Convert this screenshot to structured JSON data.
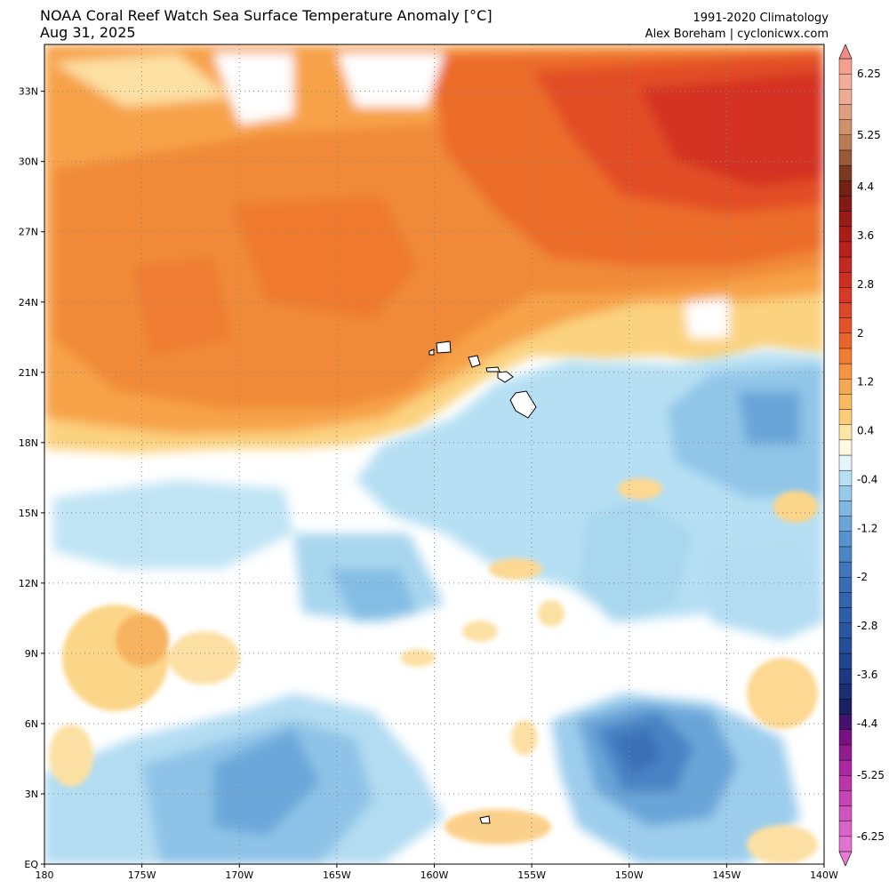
{
  "header": {
    "title": "NOAA Coral Reef Watch Sea Surface Temperature Anomaly [°C]",
    "date": "Aug 31, 2025",
    "climatology": "1991-2020 Climatology",
    "credit": "Alex Boreham | cyclonicwx.com"
  },
  "map": {
    "lat_labels": [
      "33N",
      "30N",
      "27N",
      "24N",
      "21N",
      "18N",
      "15N",
      "12N",
      "9N",
      "6N",
      "3N",
      "EQ"
    ],
    "lat_values": [
      33,
      30,
      27,
      24,
      21,
      18,
      15,
      12,
      9,
      6,
      3,
      0
    ],
    "lon_labels": [
      "180",
      "175W",
      "170W",
      "165W",
      "160W",
      "155W",
      "150W",
      "145W",
      "140W"
    ],
    "lon_values": [
      180,
      175,
      170,
      165,
      160,
      155,
      150,
      145,
      140
    ],
    "lat_range": [
      0,
      35
    ],
    "lon_range_west": [
      180,
      140
    ],
    "features": [
      "Hawaiian Islands"
    ]
  },
  "colorbar": {
    "unit": "°C",
    "range": [
      -6.5,
      6.5
    ],
    "step": 0.25,
    "labels": [
      "6.25",
      "5.25",
      "4.4",
      "3.6",
      "2.8",
      "2",
      "1.2",
      "0.4",
      "-0.4",
      "-1.2",
      "-2",
      "-2.8",
      "-3.6",
      "-4.4",
      "-5.25",
      "-6.25"
    ],
    "label_values": [
      6.25,
      5.25,
      4.4,
      3.6,
      2.8,
      2,
      1.2,
      0.4,
      -0.4,
      -1.2,
      -2,
      -2.8,
      -3.6,
      -4.4,
      -5.25,
      -6.25
    ]
  },
  "colors": {
    "warm_light": "#fde093",
    "warm_mid": "#f7a24a",
    "warm_strong": "#ee7226",
    "warm_deep": "#d8391b",
    "cool_light": "#b9e2f3",
    "cool_mid": "#8dc3e6",
    "cool_strong": "#5d9bd4",
    "cool_deep": "#3b70b9"
  }
}
